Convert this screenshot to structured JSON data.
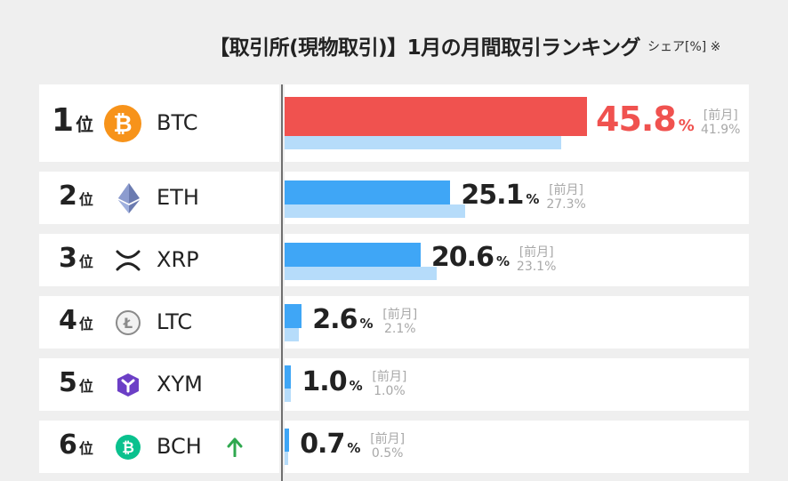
{
  "header": {
    "title": "【取引所(現物取引)】1月の月間取引ランキング",
    "unit_note": "シェア[%] ※"
  },
  "colors": {
    "current_top": "#f0524f",
    "current": "#3fa6f6",
    "previous": "#b6dcfa",
    "btc_icon": "#f7931a",
    "bch_icon": "#0ac18e",
    "xym_icon": "#6c3fc6",
    "up_arrow": "#2fa84f"
  },
  "labels": {
    "rank_suffix": "位",
    "pct": "%",
    "prev": "[前月]"
  },
  "chart_data": {
    "type": "bar",
    "categories": [
      "BTC",
      "ETH",
      "XRP",
      "LTC",
      "XYM",
      "BCH"
    ],
    "ranks": [
      "1",
      "2",
      "3",
      "4",
      "5",
      "6"
    ],
    "series": [
      {
        "values": [
          45.8,
          25.1,
          20.6,
          2.6,
          1.0,
          0.7
        ]
      },
      {
        "name": "[前月]",
        "values": [
          41.9,
          27.3,
          23.1,
          2.1,
          1.0,
          0.5
        ]
      }
    ],
    "value_labels": [
      "45.8",
      "25.1",
      "20.6",
      "2.6",
      "1.0",
      "0.7"
    ],
    "prev_labels": [
      "41.9",
      "27.3",
      "23.1",
      "2.1",
      "1.0",
      "0.5"
    ],
    "icons": [
      "bitcoin-icon",
      "ethereum-icon",
      "xrp-icon",
      "litecoin-icon",
      "symbol-icon",
      "bitcoin-cash-icon"
    ],
    "trend": [
      "",
      "",
      "",
      "",
      "",
      "up"
    ],
    "xlim": [
      0,
      47
    ]
  }
}
